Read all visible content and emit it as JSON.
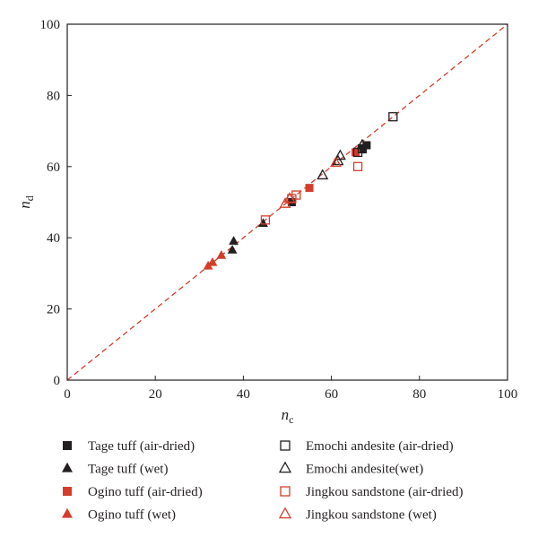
{
  "chart_data": {
    "type": "scatter",
    "xlabel": "n",
    "xlabel_sub": "c",
    "ylabel": "n",
    "ylabel_sub": "d",
    "xlim": [
      0,
      100
    ],
    "ylim": [
      0,
      100
    ],
    "xticks": [
      0,
      20,
      40,
      60,
      80,
      100
    ],
    "yticks": [
      0,
      20,
      40,
      60,
      80,
      100
    ],
    "grid": false,
    "legend_placement": "bottom",
    "reference_line": {
      "style": "dashed",
      "color": "#d43d2a",
      "x": [
        0,
        100
      ],
      "y": [
        0,
        100
      ]
    },
    "series": [
      {
        "name": "Tage tuff (air-dried)",
        "marker": "square",
        "filled": true,
        "color": "#231f20",
        "points": [
          [
            51,
            50
          ],
          [
            67,
            65
          ],
          [
            68,
            66
          ]
        ]
      },
      {
        "name": "Tage tuff (wet)",
        "marker": "triangle",
        "filled": true,
        "color": "#231f20",
        "points": [
          [
            37.5,
            36.5
          ],
          [
            37.8,
            39
          ],
          [
            44.5,
            44
          ]
        ]
      },
      {
        "name": "Ogino tuff (air-dried)",
        "marker": "square",
        "filled": true,
        "color": "#d43d2a",
        "points": [
          [
            55,
            54
          ],
          [
            65.5,
            64
          ]
        ]
      },
      {
        "name": "Ogino tuff (wet)",
        "marker": "triangle",
        "filled": true,
        "color": "#d43d2a",
        "points": [
          [
            32,
            32
          ],
          [
            33,
            33
          ],
          [
            35,
            35
          ]
        ]
      },
      {
        "name": "Emochi andesite (air-dried)",
        "marker": "square",
        "filled": false,
        "color": "#231f20",
        "points": [
          [
            66,
            64
          ],
          [
            67,
            65
          ],
          [
            74,
            74
          ]
        ]
      },
      {
        "name": "Emochi andesite(wet)",
        "marker": "triangle",
        "filled": false,
        "color": "#231f20",
        "points": [
          [
            58,
            57.5
          ],
          [
            61.5,
            61.5
          ],
          [
            62,
            63
          ],
          [
            67,
            66
          ]
        ]
      },
      {
        "name": "Jingkou sandstone (air-dried)",
        "marker": "square",
        "filled": false,
        "color": "#d43d2a",
        "points": [
          [
            45,
            45
          ],
          [
            51,
            51
          ],
          [
            52,
            52
          ],
          [
            66,
            60
          ]
        ]
      },
      {
        "name": "Jingkou sandstone (wet)",
        "marker": "triangle",
        "filled": false,
        "color": "#d43d2a",
        "points": [
          [
            49.5,
            49.5
          ],
          [
            50.5,
            51
          ],
          [
            61,
            61
          ]
        ]
      }
    ]
  }
}
